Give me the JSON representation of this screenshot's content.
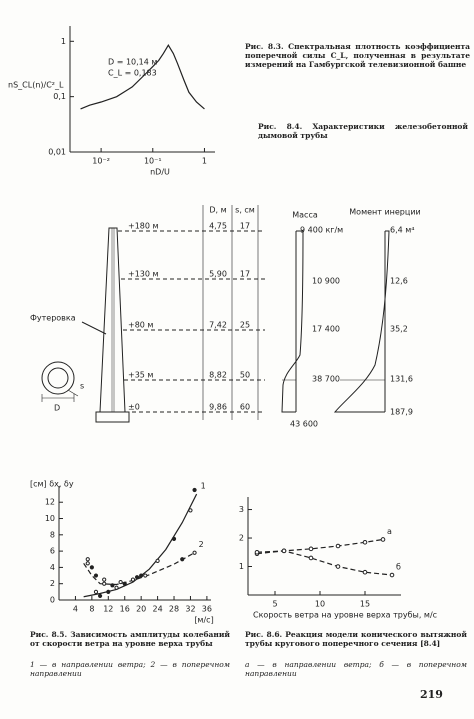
{
  "fig83": {
    "ylabel": "nS_CL(n)/C²_L",
    "xlabel": "nD/U",
    "annotations": [
      "D = 10,14 м",
      "C_L = 0,183"
    ],
    "log": true,
    "xlim": [
      0.0025,
      1.6
    ],
    "ylim": [
      0.01,
      1.6
    ],
    "xticks": [
      {
        "value": 0.01,
        "label": "10⁻²"
      },
      {
        "value": 0.1,
        "label": "10⁻¹"
      },
      {
        "value": 1,
        "label": "1"
      }
    ],
    "yticks": [
      {
        "value": 1,
        "label": "1"
      },
      {
        "value": 0.1,
        "label": "0,1"
      },
      {
        "value": 0.01,
        "label": "0,01"
      }
    ],
    "series": [
      {
        "x": [
          0.004,
          0.006,
          0.01,
          0.02,
          0.04,
          0.07,
          0.1,
          0.13,
          0.16,
          0.2,
          0.25,
          0.3,
          0.4,
          0.5,
          0.7,
          1.0
        ],
        "values": [
          0.06,
          0.07,
          0.08,
          0.1,
          0.15,
          0.25,
          0.35,
          0.45,
          0.6,
          0.85,
          0.6,
          0.4,
          0.2,
          0.12,
          0.08,
          0.06
        ]
      }
    ]
  },
  "caption83": "Рис. 8.3. Спектральная плотность коэффициента поперечной силы C_L, полученная в результате измерений на Гамбургской телевизионной башне",
  "caption84": "Рис. 8.4. Характеристики железобетонной дымовой трубы",
  "fig84": {
    "levels": [
      "+180 м",
      "+130 м",
      "+80 м",
      "+35 м",
      "±0"
    ],
    "d_header": "D, м",
    "s_header": "s, см",
    "d_values": [
      "4,75",
      "5,90",
      "7,42",
      "8,82",
      "9,86"
    ],
    "s_values": [
      "17",
      "17",
      "25",
      "50",
      "60"
    ],
    "lining": "Футеровка",
    "ring_d": "D",
    "ring_s": "s",
    "mass_title": "Масса",
    "mass_labels": [
      "9 400 кг/м",
      "10 900",
      "17 400",
      "38 700",
      "43 600"
    ],
    "moment_title": "Момент инерции",
    "moment_labels": [
      "6,4 м⁴",
      "12,6",
      "35,2",
      "131,6",
      "187,9"
    ]
  },
  "fig85": {
    "ylabel": "[см] δx, δy",
    "xlabel": "[м/с]",
    "xlim": [
      0,
      37
    ],
    "ylim": [
      0,
      13.5
    ],
    "xticks": [
      4,
      8,
      12,
      16,
      20,
      24,
      28,
      32,
      36
    ],
    "yticks": [
      0,
      2,
      4,
      6,
      8,
      10,
      12
    ],
    "series": [
      {
        "name": "1",
        "dash": false,
        "x": [
          6,
          10,
          14,
          18,
          22,
          26,
          30,
          33.5
        ],
        "values": [
          0.4,
          0.8,
          1.3,
          2.2,
          3.8,
          6.2,
          9.5,
          13
        ]
      },
      {
        "name": "2",
        "dash": true,
        "x": [
          6,
          8,
          10,
          14,
          18,
          22,
          28,
          33
        ],
        "values": [
          4.5,
          3,
          2,
          1.9,
          2.4,
          3.1,
          4.4,
          5.8
        ]
      }
    ],
    "points": {
      "x": [
        7,
        8,
        9,
        10,
        11,
        12,
        14,
        16,
        18,
        20,
        24,
        28,
        32,
        33,
        7,
        9,
        11,
        13,
        15,
        19,
        21,
        30,
        33
      ],
      "y": [
        5,
        4,
        1,
        0.5,
        2,
        1,
        1.5,
        2,
        2.5,
        3,
        4.8,
        7.5,
        11,
        13.5,
        4.5,
        3,
        2.5,
        1.8,
        2.2,
        2.8,
        3,
        5,
        5.8
      ]
    },
    "caption": "Рис. 8.5. Зависимость амплитуды колебаний от скорости ветра на уровне верха трубы",
    "legend": "1 — в направлении ветра; 2 — в поперечном направлении"
  },
  "fig86": {
    "xlabel": "Скорость ветра на уровне верха трубы, м/с",
    "xlim": [
      2,
      19
    ],
    "ylim": [
      0,
      3.3
    ],
    "xticks": [
      5,
      10,
      15
    ],
    "yticks": [
      1,
      2,
      3
    ],
    "series": [
      {
        "name": "а",
        "dash": true,
        "x": [
          3,
          6,
          9,
          12,
          15,
          17
        ],
        "values": [
          1.45,
          1.55,
          1.62,
          1.72,
          1.85,
          1.95
        ]
      },
      {
        "name": "б",
        "dash": true,
        "x": [
          3,
          6,
          9,
          12,
          15,
          18
        ],
        "values": [
          1.5,
          1.55,
          1.3,
          1.0,
          0.8,
          0.7
        ]
      }
    ],
    "caption": "Рис. 8.6. Реакция модели конического вытяжной трубы кругового поперечного сечения [8.4]",
    "legend": "а — в направлении ветра; б — в поперечном направлении"
  },
  "page_number": "219"
}
